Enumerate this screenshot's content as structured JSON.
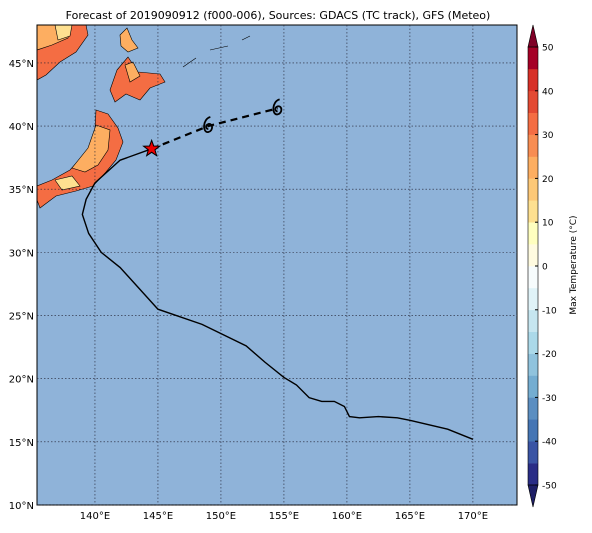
{
  "title": "Forecast of 2019090912 (f000-006), Sources: GDACS (TC track), GFS (Meteo)",
  "map": {
    "xlim": [
      135.4,
      173.5
    ],
    "ylim": [
      10,
      48
    ],
    "xticks": [
      {
        "value": 140,
        "label": "140°E"
      },
      {
        "value": 145,
        "label": "145°E"
      },
      {
        "value": 150,
        "label": "150°E"
      },
      {
        "value": 155,
        "label": "155°E"
      },
      {
        "value": 160,
        "label": "160°E"
      },
      {
        "value": 165,
        "label": "165°E"
      },
      {
        "value": 170,
        "label": "170°E"
      }
    ],
    "yticks": [
      {
        "value": 10,
        "label": "10°N"
      },
      {
        "value": 15,
        "label": "15°N"
      },
      {
        "value": 20,
        "label": "20°N"
      },
      {
        "value": 25,
        "label": "25°N"
      },
      {
        "value": 30,
        "label": "30°N"
      },
      {
        "value": 35,
        "label": "35°N"
      },
      {
        "value": 40,
        "label": "40°N"
      },
      {
        "value": 45,
        "label": "45°N"
      }
    ],
    "track": {
      "lon": [
        170,
        168,
        165,
        164,
        162.5,
        161,
        160.2,
        159.8,
        159,
        158,
        157,
        156,
        155,
        153.5,
        152,
        148.5,
        145,
        142,
        140.5,
        139.5,
        139,
        139.3,
        140,
        142,
        144.5
      ],
      "lat": [
        15.2,
        16,
        16.7,
        16.9,
        17,
        16.9,
        17,
        17.8,
        18.2,
        18.2,
        18.5,
        19.5,
        20.1,
        21.3,
        22.6,
        24.3,
        25.5,
        28.8,
        30,
        31.5,
        33,
        34.2,
        35.5,
        37.3,
        38.2
      ]
    },
    "forecast": {
      "lon": [
        144.5,
        149,
        154.5
      ],
      "lat": [
        38.2,
        40,
        41.4
      ]
    }
  },
  "colorbar": {
    "label": "Max Temperature (°C)",
    "ylim": [
      -50,
      50
    ],
    "ticks": [
      -50,
      -40,
      -30,
      -20,
      -10,
      0,
      10,
      20,
      30,
      40,
      50
    ],
    "colors": [
      "#2a2d86",
      "#3a54a4",
      "#4575b4",
      "#5b8ec1",
      "#74add1",
      "#90c3dd",
      "#abd9e9",
      "#c6e6f0",
      "#e0f3f8",
      "#f7fcfd",
      "#fffbe0",
      "#ffffbf",
      "#fee090",
      "#fdc877",
      "#fdae61",
      "#f88d52",
      "#f46d43",
      "#e34a33",
      "#d73027",
      "#a50026"
    ]
  }
}
